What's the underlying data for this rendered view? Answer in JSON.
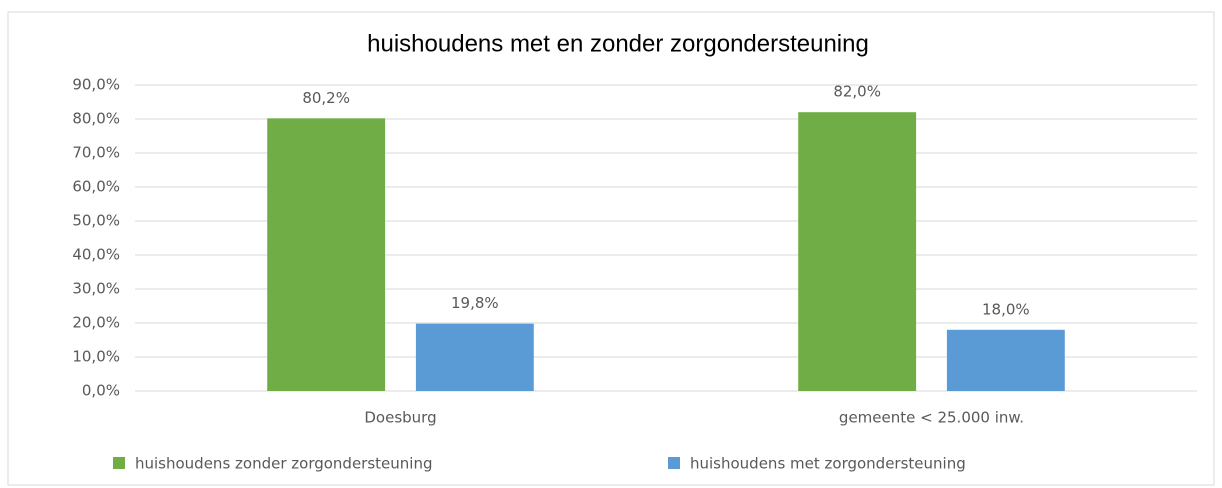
{
  "chart_data": {
    "type": "bar",
    "title": "huishoudens met en zonder zorgondersteuning",
    "categories": [
      "Doesburg",
      "gemeente < 25.000 inw."
    ],
    "series": [
      {
        "name": "huishoudens zonder zorgondersteuning",
        "color": "#70ad47",
        "values": [
          80.2,
          82.0
        ],
        "value_labels": [
          "80,2%",
          "82,0%"
        ]
      },
      {
        "name": "huishoudens met zorgondersteuning",
        "color": "#5b9bd5",
        "values": [
          19.8,
          18.0
        ],
        "value_labels": [
          "19,8%",
          "18,0%"
        ]
      }
    ],
    "ylim": [
      0,
      90
    ],
    "yticks": [
      {
        "value": 0,
        "label": "0,0%"
      },
      {
        "value": 10,
        "label": "10,0%"
      },
      {
        "value": 20,
        "label": "20,0%"
      },
      {
        "value": 30,
        "label": "30,0%"
      },
      {
        "value": 40,
        "label": "40,0%"
      },
      {
        "value": 50,
        "label": "50,0%"
      },
      {
        "value": 60,
        "label": "60,0%"
      },
      {
        "value": 70,
        "label": "70,0%"
      },
      {
        "value": 80,
        "label": "80,0%"
      },
      {
        "value": 90,
        "label": "90,0%"
      }
    ],
    "grid": true,
    "legend": "bottom"
  }
}
